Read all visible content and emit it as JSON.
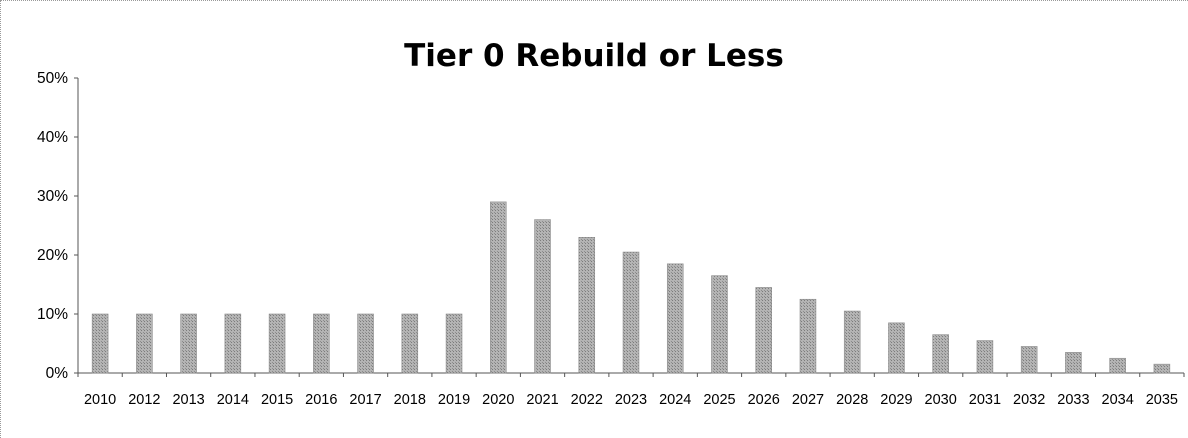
{
  "chart_data": {
    "type": "bar",
    "title": "Tier 0 Rebuild or Less",
    "xlabel": "",
    "ylabel": "",
    "categories": [
      "2010",
      "2012",
      "2013",
      "2014",
      "2015",
      "2016",
      "2017",
      "2018",
      "2019",
      "2020",
      "2021",
      "2022",
      "2023",
      "2024",
      "2025",
      "2026",
      "2027",
      "2028",
      "2029",
      "2030",
      "2031",
      "2032",
      "2033",
      "2034",
      "2035"
    ],
    "values": [
      10,
      10,
      10,
      10,
      10,
      10,
      10,
      10,
      10,
      29,
      26,
      23,
      20.5,
      18.5,
      16.5,
      14.5,
      12.5,
      10.5,
      8.5,
      6.5,
      5.5,
      4.5,
      3.5,
      2.5,
      1.5
    ],
    "ylim": [
      0,
      50
    ],
    "yticks": [
      "0%",
      "10%",
      "20%",
      "30%",
      "40%",
      "50%"
    ],
    "grid": false,
    "legend": "none",
    "bar_color": "#a9a9a9"
  }
}
